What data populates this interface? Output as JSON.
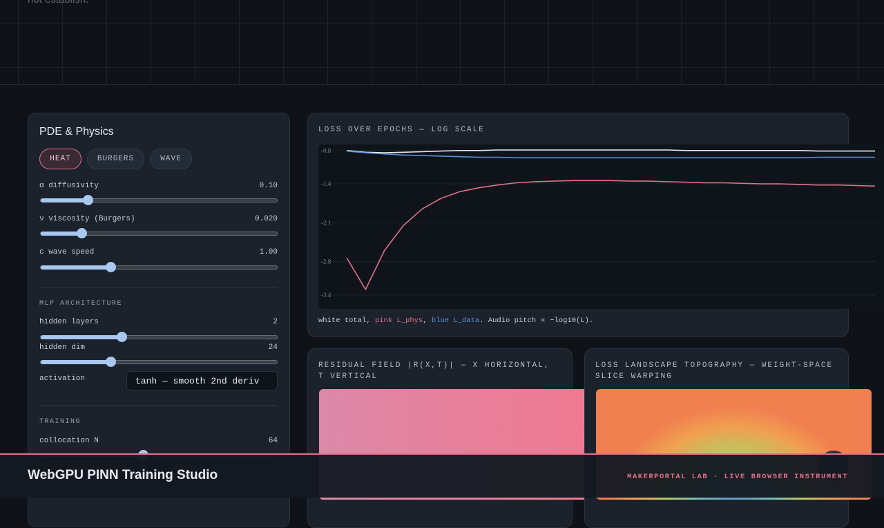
{
  "header": {
    "fragment": "not establish."
  },
  "physics": {
    "title": "PDE & Physics",
    "equations": [
      "HEAT",
      "BURGERS",
      "WAVE"
    ],
    "params": [
      {
        "label": "α diffusivity",
        "value": "0.10"
      },
      {
        "label": "ν viscosity (Burgers)",
        "value": "0.020"
      },
      {
        "label": "c wave speed",
        "value": "1.00"
      }
    ]
  },
  "architecture": {
    "title": "MLP ARCHITECTURE",
    "params": [
      {
        "label": "hidden layers",
        "value": "2"
      },
      {
        "label": "hidden dim",
        "value": "24"
      }
    ],
    "activation_label": "activation",
    "activation": "tanh — smooth 2nd deriv"
  },
  "training": {
    "title": "TRAINING",
    "params": [
      {
        "label": "collocation N",
        "value": "64"
      }
    ]
  },
  "chart_data": {
    "type": "line",
    "title": "LOSS OVER EPOCHS — LOG SCALE",
    "ylim": [
      -3.65,
      -0.69
    ],
    "yticks": [
      -0.8,
      -1.4,
      -2.1,
      -2.8,
      -3.4
    ],
    "grid": true,
    "series": [
      {
        "name": "total",
        "color": "#e8eaf0",
        "values": [
          -0.8,
          -0.83,
          -0.84,
          -0.83,
          -0.82,
          -0.81,
          -0.8,
          -0.8,
          -0.79,
          -0.79,
          -0.79,
          -0.79,
          -0.79,
          -0.79,
          -0.79,
          -0.79,
          -0.79,
          -0.79,
          -0.8,
          -0.8,
          -0.8,
          -0.8,
          -0.8,
          -0.8,
          -0.8,
          -0.81,
          -0.81,
          -0.81,
          -0.81
        ]
      },
      {
        "name": "L_phys",
        "color": "#e0708a",
        "values": [
          -2.73,
          -3.3,
          -2.6,
          -2.15,
          -1.85,
          -1.66,
          -1.54,
          -1.47,
          -1.42,
          -1.38,
          -1.36,
          -1.35,
          -1.34,
          -1.34,
          -1.34,
          -1.35,
          -1.35,
          -1.36,
          -1.37,
          -1.38,
          -1.38,
          -1.39,
          -1.4,
          -1.4,
          -1.41,
          -1.42,
          -1.42,
          -1.43,
          -1.44
        ]
      },
      {
        "name": "L_data",
        "color": "#5a90d8",
        "values": [
          -0.81,
          -0.84,
          -0.86,
          -0.88,
          -0.89,
          -0.9,
          -0.91,
          -0.92,
          -0.92,
          -0.93,
          -0.93,
          -0.93,
          -0.93,
          -0.93,
          -0.93,
          -0.93,
          -0.93,
          -0.93,
          -0.93,
          -0.93,
          -0.93,
          -0.93,
          -0.93,
          -0.93,
          -0.93,
          -0.92,
          -0.92,
          -0.92,
          -0.92
        ]
      }
    ],
    "caption": [
      "white ",
      ", ",
      "pink ",
      ", ",
      "blue ",
      ". Audio pitch ∝ −log10(L)."
    ]
  },
  "residual": {
    "title": "RESIDUAL FIELD |R(X,T)| — X HORIZONTAL, T VERTICAL"
  },
  "landscape": {
    "title": "LOSS LANDSCAPE TOPOGRAPHY — WEIGHT-SPACE SLICE WARPING"
  },
  "footer": {
    "title": "WebGPU PINN Training Studio",
    "tagline": "MAKERPORTAL LAB · LIVE BROWSER INSTRUMENT"
  }
}
